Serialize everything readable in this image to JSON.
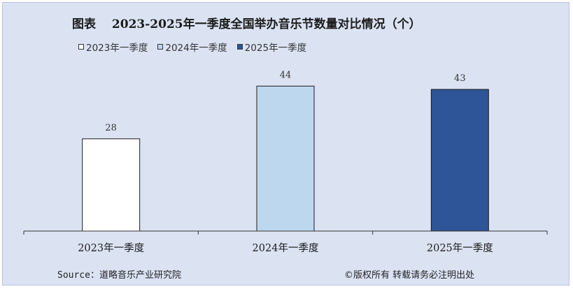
{
  "title": "图表　 2023-2025年一季度全国举办音乐节数量对比情况（个）",
  "colors": {
    "background": "#dbe3f3",
    "bar_2023": "#ffffff",
    "bar_2024": "#bdd7ee",
    "bar_2025": "#2e5597",
    "axis": "#333333"
  },
  "legend": [
    {
      "label": "2023年一季度",
      "color": "#ffffff"
    },
    {
      "label": "2024年一季度",
      "color": "#bdd7ee"
    },
    {
      "label": "2025年一季度",
      "color": "#2e5597"
    }
  ],
  "footer": {
    "source": "Source：道略音乐产业研究院",
    "copyright": "©版权所有  转载请务必注明出处"
  },
  "chart_data": {
    "type": "bar",
    "title": "图表　 2023-2025年一季度全国举办音乐节数量对比情况（个）",
    "categories": [
      "2023年一季度",
      "2024年一季度",
      "2025年一季度"
    ],
    "values": [
      28,
      44,
      43
    ],
    "data_labels": [
      "28",
      "44",
      "43"
    ],
    "colors": [
      "#ffffff",
      "#bdd7ee",
      "#2e5597"
    ],
    "ylim": [
      0,
      56
    ],
    "grid": false,
    "legend_position": "top-left",
    "xlabel": "",
    "ylabel": ""
  }
}
